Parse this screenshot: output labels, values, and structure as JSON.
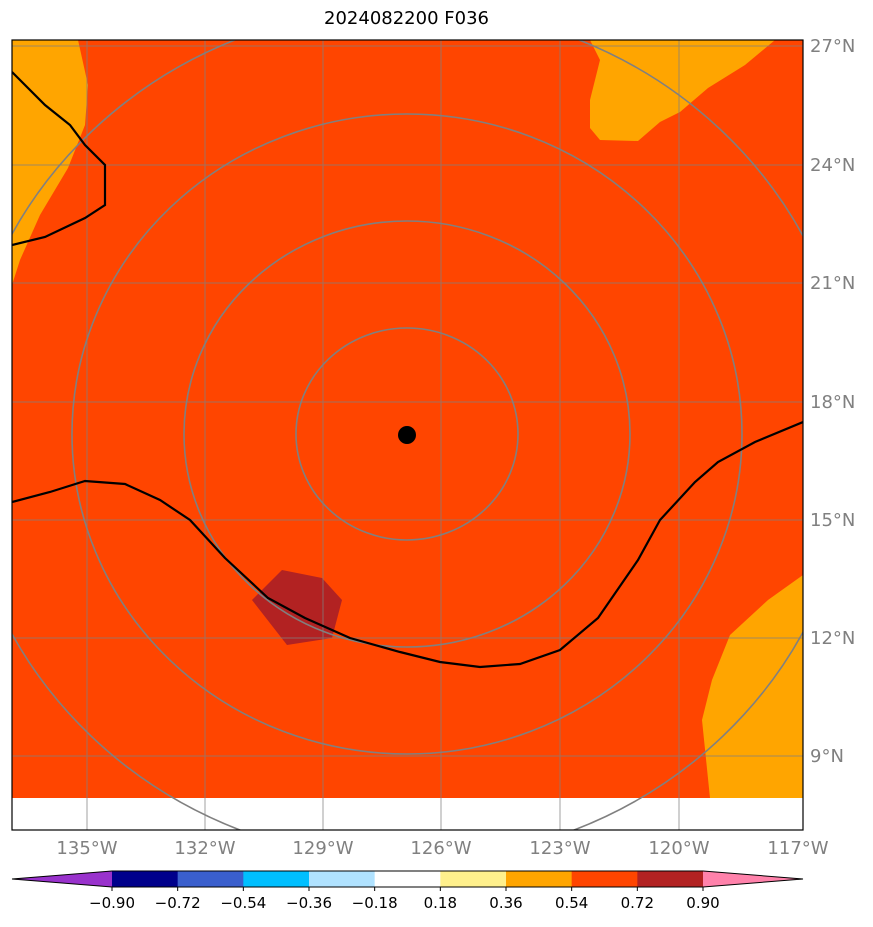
{
  "title": "2024082200 F036",
  "map": {
    "lon_labels": [
      "135°W",
      "132°W",
      "129°W",
      "126°W",
      "123°W",
      "120°W",
      "117°W"
    ],
    "lat_labels": [
      "27°N",
      "24°N",
      "21°N",
      "18°N",
      "15°N",
      "12°N",
      "9°N"
    ],
    "center_marker": "storm-center-dot",
    "colors": {
      "field": "#ff4500",
      "orange": "#ffa500",
      "darkred": "#b22222",
      "grid": "#808080",
      "contour": "#000000"
    }
  },
  "colorbar": {
    "tick_labels": [
      "−0.90",
      "−0.72",
      "−0.54",
      "−0.36",
      "−0.18",
      "0.18",
      "0.36",
      "0.54",
      "0.72",
      "0.90"
    ],
    "colors": [
      "#9932cc",
      "#00008b",
      "#3a5fcd",
      "#00bfff",
      "#b0e2ff",
      "#ffffff",
      "#fff08c",
      "#ffa500",
      "#ff4500",
      "#b22222",
      "#ff82ab"
    ]
  }
}
